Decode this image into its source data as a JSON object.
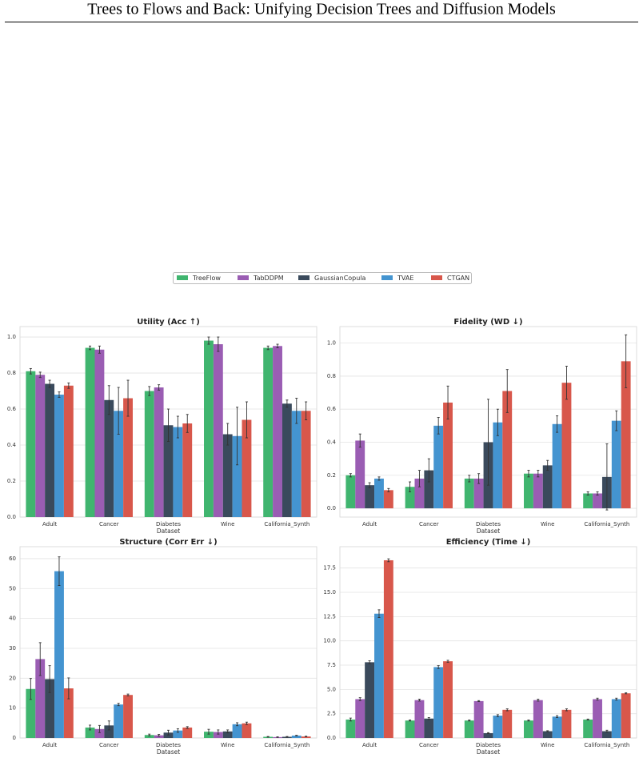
{
  "header": {
    "title": "Trees to Flows and Back: Unifying Decision Trees and Diffusion Models"
  },
  "legend": {
    "entries": [
      {
        "name": "TreeFlow",
        "color": "#40b56f"
      },
      {
        "name": "TabDDPM",
        "color": "#9a5db3"
      },
      {
        "name": "GaussianCopula",
        "color": "#3a4a5c"
      },
      {
        "name": "TVAE",
        "color": "#4494d0"
      },
      {
        "name": "CTGAN",
        "color": "#d8574b"
      }
    ]
  },
  "chart_data": [
    {
      "type": "bar",
      "title": "Utility (Acc ↑)",
      "x_label": "Dataset",
      "categories": [
        "Adult",
        "Cancer",
        "Diabetes",
        "Wine",
        "California_Synth"
      ],
      "series": [
        {
          "values": [
            0.81,
            0.94,
            0.7,
            0.98,
            0.94
          ],
          "errors": [
            0.015,
            0.01,
            0.025,
            0.02,
            0.01
          ]
        },
        {
          "values": [
            0.79,
            0.93,
            0.72,
            0.96,
            0.95
          ],
          "errors": [
            0.015,
            0.02,
            0.015,
            0.04,
            0.01
          ]
        },
        {
          "values": [
            0.74,
            0.65,
            0.51,
            0.46,
            0.63
          ],
          "errors": [
            0.02,
            0.08,
            0.09,
            0.06,
            0.02
          ]
        },
        {
          "values": [
            0.68,
            0.59,
            0.5,
            0.45,
            0.59
          ],
          "errors": [
            0.015,
            0.13,
            0.06,
            0.16,
            0.07
          ]
        },
        {
          "values": [
            0.73,
            0.66,
            0.52,
            0.54,
            0.59
          ],
          "errors": [
            0.015,
            0.1,
            0.05,
            0.1,
            0.05
          ]
        }
      ],
      "ylim": [
        0,
        1.058
      ],
      "yticks": [
        {
          "value": 0,
          "label": "0.0"
        },
        {
          "value": 0.2,
          "label": "0.2"
        },
        {
          "value": 0.4,
          "label": "0.4"
        },
        {
          "value": 0.6,
          "label": "0.6"
        },
        {
          "value": 0.8,
          "label": "0.8"
        },
        {
          "value": 1,
          "label": "1.0"
        }
      ],
      "grid": true
    },
    {
      "type": "bar",
      "title": "Fidelity (WD ↓)",
      "x_label": "Dataset",
      "categories": [
        "Adult",
        "Cancer",
        "Diabetes",
        "Wine",
        "California_Synth"
      ],
      "series": [
        {
          "values": [
            0.2,
            0.13,
            0.18,
            0.21,
            0.09
          ],
          "errors": [
            0.01,
            0.03,
            0.02,
            0.02,
            0.01
          ]
        },
        {
          "values": [
            0.41,
            0.18,
            0.18,
            0.21,
            0.09
          ],
          "errors": [
            0.04,
            0.05,
            0.03,
            0.02,
            0.01
          ]
        },
        {
          "values": [
            0.14,
            0.23,
            0.4,
            0.26,
            0.19
          ],
          "errors": [
            0.015,
            0.07,
            0.26,
            0.03,
            0.2
          ]
        },
        {
          "values": [
            0.18,
            0.5,
            0.52,
            0.51,
            0.53
          ],
          "errors": [
            0.01,
            0.05,
            0.08,
            0.05,
            0.06
          ]
        },
        {
          "values": [
            0.11,
            0.64,
            0.71,
            0.76,
            0.89
          ],
          "errors": [
            0.01,
            0.1,
            0.13,
            0.1,
            0.16
          ]
        }
      ],
      "ylim": [
        -0.053,
        1.1
      ],
      "yticks": [
        {
          "value": 0,
          "label": "0.0"
        },
        {
          "value": 0.2,
          "label": "0.2"
        },
        {
          "value": 0.4,
          "label": "0.4"
        },
        {
          "value": 0.6,
          "label": "0.6"
        },
        {
          "value": 0.8,
          "label": "0.8"
        },
        {
          "value": 1,
          "label": "1.0"
        }
      ],
      "grid": true
    },
    {
      "type": "bar",
      "title": "Structure (Corr Err ↓)",
      "x_label": "Dataset",
      "categories": [
        "Adult",
        "Cancer",
        "Diabetes",
        "Wine",
        "California_Synth"
      ],
      "series": [
        {
          "values": [
            16.4,
            3.5,
            1.0,
            2.1,
            0.4
          ],
          "errors": [
            3.5,
            0.8,
            0.3,
            0.8,
            0.1
          ]
        },
        {
          "values": [
            26.4,
            3.0,
            0.9,
            2.0,
            0.3
          ],
          "errors": [
            5.5,
            1.2,
            0.3,
            0.7,
            0.1
          ]
        },
        {
          "values": [
            19.7,
            4.2,
            1.8,
            2.2,
            0.4
          ],
          "errors": [
            4.5,
            1.5,
            0.8,
            0.5,
            0.1
          ]
        },
        {
          "values": [
            55.8,
            11.2,
            2.5,
            4.6,
            0.8
          ],
          "errors": [
            4.8,
            0.4,
            0.6,
            0.5,
            0.1
          ]
        },
        {
          "values": [
            16.6,
            14.4,
            3.5,
            4.9,
            0.5
          ],
          "errors": [
            3.5,
            0.3,
            0.3,
            0.4,
            0.1
          ]
        }
      ],
      "ylim": [
        0,
        64
      ],
      "yticks": [
        0,
        10,
        20,
        30,
        40,
        50,
        60
      ],
      "grid": true
    },
    {
      "type": "bar",
      "title": "Efficiency (Time ↓)",
      "x_label": "Dataset",
      "categories": [
        "Adult",
        "Cancer",
        "Diabetes",
        "Wine",
        "California_Synth"
      ],
      "series": [
        {
          "values": [
            1.9,
            1.8,
            1.8,
            1.8,
            1.9
          ],
          "errors": [
            0.15,
            0.05,
            0.05,
            0.05,
            0.05
          ]
        },
        {
          "values": [
            4.0,
            3.9,
            3.8,
            3.9,
            4.0
          ],
          "errors": [
            0.15,
            0.1,
            0.05,
            0.1,
            0.1
          ]
        },
        {
          "values": [
            7.8,
            2.0,
            0.5,
            0.7,
            0.7
          ],
          "errors": [
            0.15,
            0.1,
            0.05,
            0.05,
            0.1
          ]
        },
        {
          "values": [
            12.8,
            7.3,
            2.3,
            2.2,
            4.0
          ],
          "errors": [
            0.4,
            0.15,
            0.1,
            0.1,
            0.1
          ]
        },
        {
          "values": [
            18.3,
            7.9,
            2.9,
            2.9,
            4.6
          ],
          "errors": [
            0.15,
            0.1,
            0.1,
            0.1,
            0.05
          ]
        }
      ],
      "ylim": [
        0,
        19.7
      ],
      "yticks": [
        {
          "value": 0,
          "label": "0.0"
        },
        {
          "value": 2.5,
          "label": "2.5"
        },
        {
          "value": 5,
          "label": "5.0"
        },
        {
          "value": 7.5,
          "label": "7.5"
        },
        {
          "value": 10,
          "label": "10.0"
        },
        {
          "value": 12.5,
          "label": "12.5"
        },
        {
          "value": 15,
          "label": "15.0"
        },
        {
          "value": 17.5,
          "label": "17.5"
        }
      ],
      "grid": true
    }
  ]
}
